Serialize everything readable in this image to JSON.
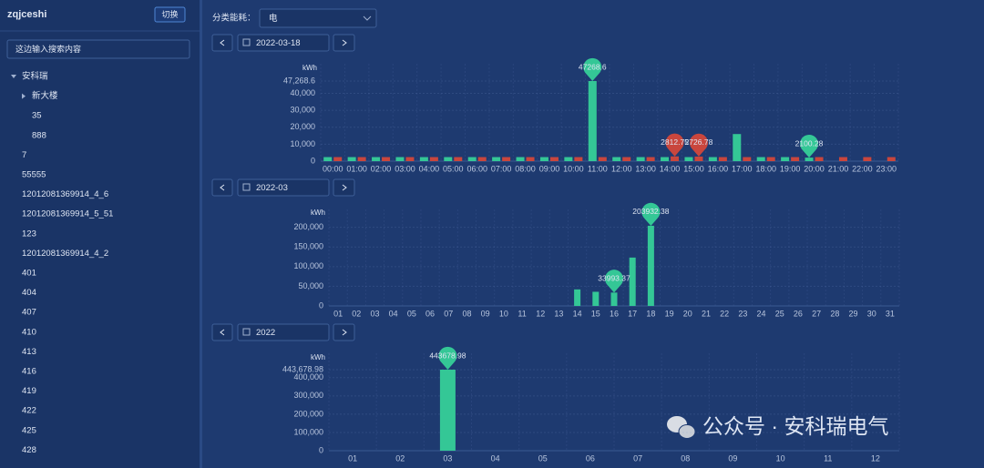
{
  "sidebar": {
    "title": "zqjceshi",
    "switch_button": "切换",
    "search_placeholder": "这边输入搜索内容",
    "tree": [
      {
        "label": "安科瑞",
        "expanded": true,
        "children": [
          {
            "label": "新大楼",
            "collapsed": true
          },
          {
            "label": "35"
          },
          {
            "label": "888"
          }
        ]
      },
      {
        "label": "7"
      },
      {
        "label": "55555"
      },
      {
        "label": "12012081369914_4_6"
      },
      {
        "label": "12012081369914_5_51"
      },
      {
        "label": "123"
      },
      {
        "label": "12012081369914_4_2"
      },
      {
        "label": "401"
      },
      {
        "label": "404"
      },
      {
        "label": "407"
      },
      {
        "label": "410"
      },
      {
        "label": "413"
      },
      {
        "label": "416"
      },
      {
        "label": "419"
      },
      {
        "label": "422"
      },
      {
        "label": "425"
      },
      {
        "label": "428"
      }
    ]
  },
  "controls": {
    "category_label": "分类能耗：",
    "category_value": "电",
    "date_pickers": [
      "2022-03-18",
      "2022-03",
      "2022"
    ]
  },
  "watermark": "公众号 · 安科瑞电气",
  "chart_data": [
    {
      "type": "bar",
      "y_label": "kWh",
      "categories": [
        "00:00",
        "01:00",
        "02:00",
        "03:00",
        "04:00",
        "05:00",
        "06:00",
        "07:00",
        "08:00",
        "09:00",
        "10:00",
        "11:00",
        "12:00",
        "13:00",
        "14:00",
        "15:00",
        "16:00",
        "17:00",
        "18:00",
        "19:00",
        "20:00",
        "21:00",
        "22:00",
        "23:00"
      ],
      "series": [
        {
          "color": "#34c796",
          "values": [
            2400,
            2400,
            2400,
            2400,
            2400,
            2400,
            2400,
            2400,
            2400,
            2400,
            2400,
            47268.6,
            2400,
            2400,
            2400,
            2400,
            2400,
            16000,
            2400,
            2400,
            2100.28,
            0,
            0,
            0
          ]
        },
        {
          "color": "#c9463d",
          "values": [
            2400,
            2400,
            2400,
            2400,
            2400,
            2400,
            2400,
            2400,
            2400,
            2400,
            2400,
            2400,
            2400,
            2400,
            2812.75,
            2726.78,
            2400,
            2400,
            2400,
            2400,
            2400,
            2400,
            2400,
            2400
          ]
        }
      ],
      "mark_points": [
        {
          "series": 0,
          "index": 11
        },
        {
          "series": 1,
          "index": 14
        },
        {
          "series": 1,
          "index": 15
        },
        {
          "series": 0,
          "index": 20
        }
      ],
      "ylim": [
        0,
        47268.6
      ],
      "yticks": [
        0,
        {
          "value": 10000,
          "label": "10,000"
        },
        {
          "value": 20000,
          "label": "20,000"
        },
        {
          "value": 30000,
          "label": "30,000"
        },
        {
          "value": 40000,
          "label": "40,000"
        },
        {
          "value": 47268.6,
          "label": "47,268.6"
        }
      ],
      "grid": true
    },
    {
      "type": "bar",
      "y_label": "kWh",
      "categories": [
        "01",
        "02",
        "03",
        "04",
        "05",
        "06",
        "07",
        "08",
        "09",
        "10",
        "11",
        "12",
        "13",
        "14",
        "15",
        "16",
        "17",
        "18",
        "19",
        "20",
        "21",
        "22",
        "23",
        "24",
        "25",
        "26",
        "27",
        "28",
        "29",
        "30",
        "31"
      ],
      "series": [
        {
          "color": "#34c796",
          "values": [
            0,
            0,
            0,
            0,
            0,
            0,
            0,
            0,
            0,
            0,
            0,
            0,
            0,
            42000,
            36000,
            33993.37,
            123000,
            203932.38,
            0,
            0,
            0,
            0,
            0,
            0,
            0,
            0,
            0,
            0,
            0,
            0,
            0
          ]
        }
      ],
      "mark_points": [
        {
          "series": 0,
          "index": 17
        },
        {
          "series": 0,
          "index": 15
        }
      ],
      "ylim": [
        0,
        220000
      ],
      "yticks": [
        0,
        {
          "value": 50000,
          "label": "50,000"
        },
        {
          "value": 100000,
          "label": "100,000"
        },
        {
          "value": 150000,
          "label": "150,000"
        },
        {
          "value": 200000,
          "label": "200,000"
        }
      ],
      "grid": true
    },
    {
      "type": "bar",
      "y_label": "kWh",
      "categories": [
        "01",
        "02",
        "03",
        "04",
        "05",
        "06",
        "07",
        "08",
        "09",
        "10",
        "11",
        "12"
      ],
      "series": [
        {
          "color": "#34c796",
          "values": [
            0,
            0,
            443678.98,
            0,
            0,
            0,
            0,
            0,
            0,
            0,
            0,
            0
          ]
        }
      ],
      "mark_points": [
        {
          "series": 0,
          "index": 2
        }
      ],
      "ylim": [
        0,
        443678.98
      ],
      "yticks": [
        0,
        {
          "value": 100000,
          "label": "100,000"
        },
        {
          "value": 200000,
          "label": "200,000"
        },
        {
          "value": 300000,
          "label": "300,000"
        },
        {
          "value": 400000,
          "label": "400,000"
        },
        {
          "value": 443678.98,
          "label": "443,678.98"
        }
      ],
      "grid": true
    }
  ]
}
